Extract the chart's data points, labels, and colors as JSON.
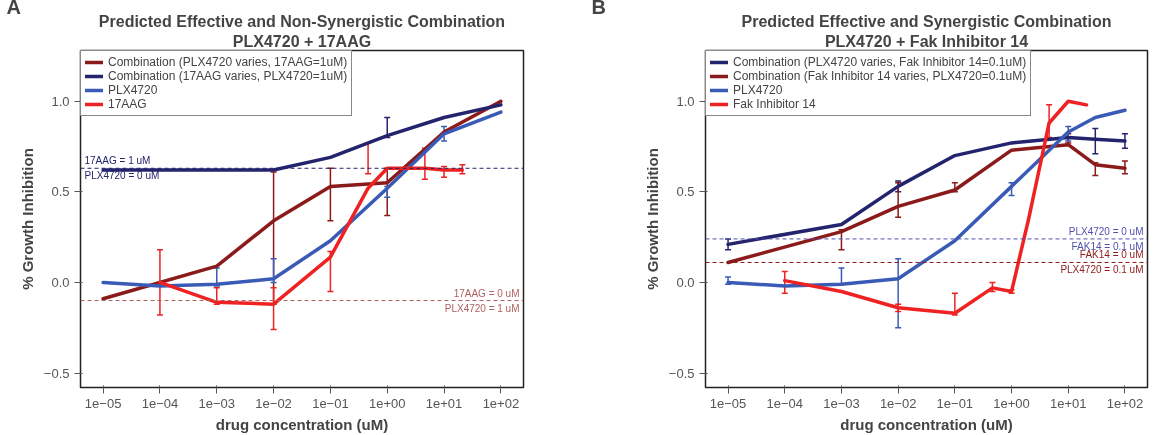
{
  "chart_data": [
    {
      "type": "line",
      "title": "Predicted Effective and Non-Synergistic Combination",
      "subtitle": "PLX4720 + 17AAG",
      "xlabel": "drug concentration (uM)",
      "ylabel": "% Growth Inhibition",
      "log": "x",
      "legend": "top left",
      "grid": false,
      "xlim": [
        4e-06,
        250
      ],
      "xticks": [
        {
          "value": 1e-05,
          "label": "1e−05"
        },
        {
          "value": 0.0001,
          "label": "1e−04"
        },
        {
          "value": 0.001,
          "label": "1e−03"
        },
        {
          "value": 0.01,
          "label": "1e−02"
        },
        {
          "value": 0.1,
          "label": "1e−01"
        },
        {
          "value": 1,
          "label": "1e+00"
        },
        {
          "value": 10,
          "label": "1e+01"
        },
        {
          "value": 100,
          "label": "1e+02"
        }
      ],
      "ylim": [
        -0.58,
        1.28
      ],
      "yticks": [
        {
          "value": -0.5,
          "label": "−0.5"
        },
        {
          "value": 0,
          "label": "0.0"
        },
        {
          "value": 0.5,
          "label": "0.5"
        },
        {
          "value": 1,
          "label": "1.0"
        }
      ],
      "series": [
        {
          "name": "Combination (PLX4720 varies, 17AAG=1uM)",
          "color": "#8b1a1a",
          "x": [
            1e-05,
            0.001,
            0.01,
            0.1,
            1,
            10,
            100
          ],
          "values": [
            -0.09,
            0.09,
            0.34,
            0.53,
            0.55,
            0.83,
            1.0
          ],
          "errors": [
            null,
            null,
            [
              -0.12,
              0.61
            ],
            [
              0.34,
              0.63
            ],
            [
              0.37,
              0.63
            ],
            null,
            null
          ]
        },
        {
          "name": "Combination (17AAG varies, PLX4720=1uM)",
          "color": "#24246e",
          "x": [
            1e-05,
            0.001,
            0.01,
            0.1,
            1,
            10,
            100
          ],
          "values": [
            0.62,
            0.62,
            0.62,
            0.69,
            0.81,
            0.91,
            0.98
          ],
          "errors": [
            null,
            null,
            null,
            null,
            [
              0.8,
              0.91
            ],
            null,
            null
          ]
        },
        {
          "name": "PLX4720",
          "color": "#3a5bb5",
          "x": [
            1e-05,
            0.0001,
            0.001,
            0.01,
            0.1,
            1,
            10,
            100
          ],
          "values": [
            0.0,
            -0.02,
            -0.01,
            0.02,
            0.23,
            0.52,
            0.82,
            0.94
          ],
          "errors": [
            null,
            null,
            [
              -0.02,
              0.08
            ],
            [
              0.0,
              0.13
            ],
            null,
            [
              0.47,
              0.53
            ],
            [
              0.78,
              0.86
            ],
            null
          ]
        },
        {
          "name": "17AAG",
          "color": "#ee2222",
          "x": [
            0.0001,
            0.001,
            0.01,
            0.1,
            0.46,
            1,
            4.6,
            10,
            21
          ],
          "values": [
            0.0,
            -0.11,
            -0.12,
            0.14,
            0.52,
            0.63,
            0.63,
            0.62,
            0.62
          ],
          "errors": [
            [
              -0.18,
              0.18
            ],
            [
              -0.12,
              -0.03
            ],
            [
              -0.26,
              -0.03
            ],
            [
              -0.05,
              0.17
            ],
            [
              0.6,
              0.77
            ],
            null,
            [
              0.57,
              0.74
            ],
            [
              0.58,
              0.64
            ],
            [
              0.6,
              0.65
            ]
          ]
        }
      ],
      "ref_lines": [
        {
          "axis": "y",
          "value": 0.63,
          "color": "#24246e",
          "line_style": "dashed",
          "label": "17AAG = 1 uM\nPLX4720 = 0 uM"
        },
        {
          "axis": "y",
          "value": -0.1,
          "color": "#b06060",
          "line_style": "dashed",
          "label": "17AAG = 0 uM\nPLX4720 = 1 uM"
        }
      ],
      "annotations": [
        "A"
      ]
    },
    {
      "type": "line",
      "title": "Predicted Effective and Synergistic Combination",
      "subtitle": "PLX4720 + Fak Inhibitor 14",
      "xlabel": "drug concentration (uM)",
      "ylabel": "% Growth Inhibition",
      "log": "x",
      "legend": "top left",
      "grid": false,
      "xlim": [
        4e-06,
        250
      ],
      "xticks": [
        {
          "value": 1e-05,
          "label": "1e−05"
        },
        {
          "value": 0.0001,
          "label": "1e−04"
        },
        {
          "value": 0.001,
          "label": "1e−03"
        },
        {
          "value": 0.01,
          "label": "1e−02"
        },
        {
          "value": 0.1,
          "label": "1e−01"
        },
        {
          "value": 1,
          "label": "1e+00"
        },
        {
          "value": 10,
          "label": "1e+01"
        },
        {
          "value": 100,
          "label": "1e+02"
        }
      ],
      "ylim": [
        -0.58,
        1.28
      ],
      "yticks": [
        {
          "value": -0.5,
          "label": "−0.5"
        },
        {
          "value": 0,
          "label": "0.0"
        },
        {
          "value": 0.5,
          "label": "0.5"
        },
        {
          "value": 1,
          "label": "1.0"
        }
      ],
      "series": [
        {
          "name": "Combination (PLX4720 varies, Fak Inhibitor 14=0.1uM)",
          "color": "#24246e",
          "x": [
            1e-05,
            0.001,
            0.01,
            0.1,
            1,
            10,
            30,
            100
          ],
          "values": [
            0.21,
            0.32,
            0.53,
            0.7,
            0.77,
            0.8,
            0.79,
            0.78
          ],
          "errors": [
            [
              0.18,
              0.24
            ],
            null,
            [
              0.5,
              0.56
            ],
            null,
            null,
            null,
            [
              0.71,
              0.85
            ],
            [
              0.74,
              0.82
            ]
          ]
        },
        {
          "name": "Combination (Fak Inhibitor 14 varies, PLX4720=0.1uM)",
          "color": "#8b1a1a",
          "x": [
            1e-05,
            0.001,
            0.01,
            0.1,
            1,
            10,
            30,
            100
          ],
          "values": [
            0.11,
            0.28,
            0.42,
            0.51,
            0.73,
            0.76,
            0.65,
            0.63
          ],
          "errors": [
            null,
            [
              0.18,
              0.29
            ],
            [
              0.36,
              0.55
            ],
            [
              0.5,
              0.55
            ],
            null,
            [
              0.77,
              0.82
            ],
            [
              0.59,
              0.66
            ],
            [
              0.6,
              0.67
            ]
          ]
        },
        {
          "name": "PLX4720",
          "color": "#3a5bb5",
          "x": [
            1e-05,
            0.0001,
            0.001,
            0.01,
            0.1,
            1,
            10,
            30,
            100
          ],
          "values": [
            0.0,
            -0.02,
            -0.01,
            0.02,
            0.23,
            0.53,
            0.83,
            0.91,
            0.95
          ],
          "errors": [
            [
              -0.01,
              0.03
            ],
            null,
            [
              -0.01,
              0.08
            ],
            [
              -0.25,
              0.13
            ],
            null,
            [
              0.48,
              0.55
            ],
            [
              0.78,
              0.86
            ],
            null,
            null
          ]
        },
        {
          "name": "Fak Inhibitor 14",
          "color": "#ee2222",
          "x": [
            0.0001,
            0.001,
            0.01,
            0.1,
            0.46,
            1,
            2,
            4.6,
            10,
            21
          ],
          "values": [
            0.01,
            -0.05,
            -0.14,
            -0.17,
            -0.03,
            -0.05,
            0.35,
            0.88,
            1.0,
            0.98
          ],
          "errors": [
            [
              -0.06,
              0.06
            ],
            null,
            [
              -0.16,
              -0.12
            ],
            [
              -0.18,
              -0.06
            ],
            [
              -0.05,
              0.0
            ],
            [
              -0.06,
              -0.04
            ],
            null,
            [
              0.8,
              0.98
            ],
            null,
            null
          ]
        }
      ],
      "ref_lines": [
        {
          "axis": "y",
          "value": 0.24,
          "color": "#5050b0",
          "line_style": "dashed",
          "label": "PLX4720 = 0 uM\nFAK14 = 0.1 uM"
        },
        {
          "axis": "y",
          "value": 0.11,
          "color": "#8b1a1a",
          "line_style": "dashed",
          "label": "FAK14 = 0 uM\nPLX4720 = 0.1 uM"
        }
      ],
      "annotations": [
        "B"
      ]
    }
  ]
}
